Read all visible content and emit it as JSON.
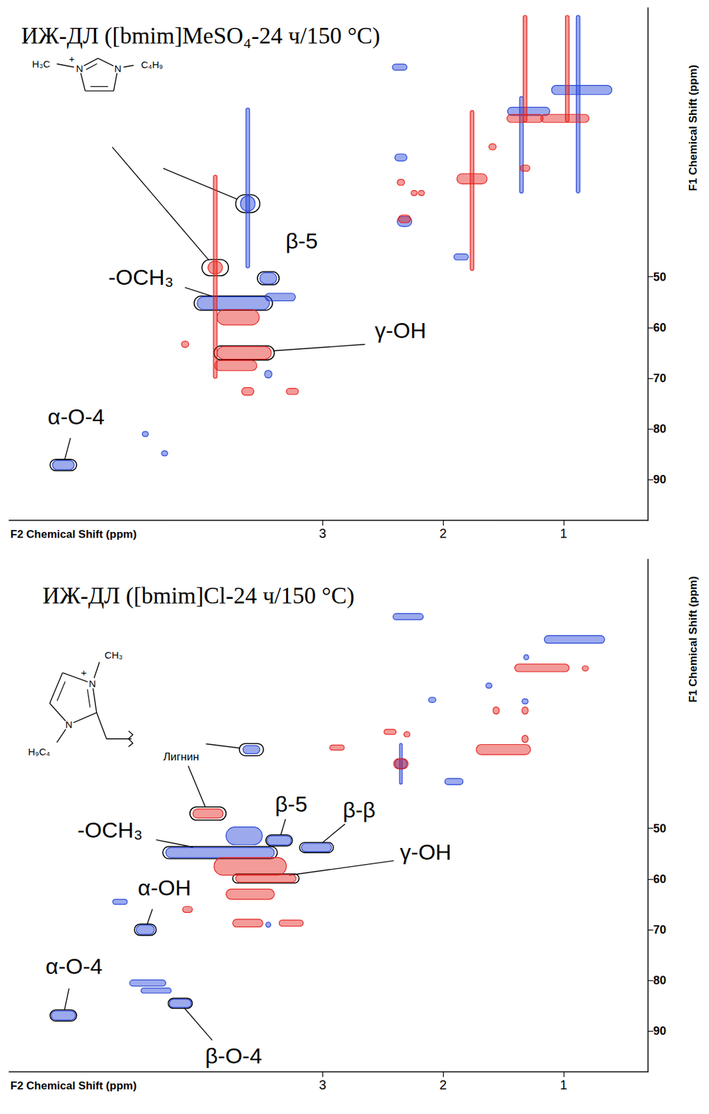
{
  "chart_data": [
    {
      "type": "scatter",
      "title": "ИЖ-ДЛ ([bmim]MeSO₄-24 ч/150 °C)",
      "x_label": "F2 Chemical Shift (ppm)",
      "y_label": "F1 Chemical Shift (ppm)",
      "xlim": [
        5.6,
        0.3
      ],
      "ylim": [
        98,
        -3
      ],
      "xticks": [
        3,
        2,
        1
      ],
      "yticks": [
        50,
        60,
        70,
        80,
        90
      ],
      "grid": false,
      "series": [
        {
          "color": "#2343d6",
          "x": [
            3.62,
            3.62,
            3.45,
            3.74,
            3.35,
            5.15,
            2.36,
            0.85,
            0.88,
            1.29,
            1.35,
            2.35,
            2.32,
            1.85,
            3.45,
            4.47,
            4.31
          ],
          "y": [
            35.6,
            32.5,
            50.3,
            55.2,
            54.0,
            87.1,
            8.7,
            13.2,
            16.0,
            17.4,
            24.0,
            26.5,
            39.1,
            46.1,
            69.2,
            81.0,
            84.8
          ],
          "dx": [
            0.12,
            0.03,
            0.14,
            0.6,
            0.25,
            0.18,
            0.12,
            0.5,
            0.03,
            0.35,
            0.03,
            0.1,
            0.12,
            0.12,
            0.06,
            0.05,
            0.05
          ],
          "dy": [
            3,
            31.5,
            2.2,
            2.5,
            1.5,
            1.8,
            1.2,
            1.8,
            35,
            1.6,
            19,
            1.4,
            2,
            1.2,
            1.5,
            1,
            1
          ]
        },
        {
          "color": "#e5211d",
          "x": [
            3.89,
            3.89,
            3.65,
            3.7,
            3.72,
            3.62,
            3.25,
            4.14,
            1.76,
            1.76,
            0.99,
            0.97,
            1.32,
            1.32,
            1.32,
            1.59,
            2.35,
            2.24,
            2.18,
            2.32
          ],
          "y": [
            48.2,
            50,
            65.0,
            58,
            67.5,
            72.6,
            72.6,
            63.3,
            30.7,
            33,
            18.8,
            9,
            18.8,
            9,
            28.6,
            24.4,
            31.4,
            33.5,
            33.5,
            38.6
          ],
          "dx": [
            0.12,
            0.03,
            0.45,
            0.35,
            0.35,
            0.1,
            0.1,
            0.06,
            0.25,
            0.03,
            0.4,
            0.03,
            0.3,
            0.03,
            0.08,
            0.06,
            0.06,
            0.05,
            0.05,
            0.1
          ],
          "dy": [
            2.5,
            40,
            2.5,
            3,
            2,
            1.5,
            1.2,
            1.2,
            2,
            31.5,
            1.6,
            21,
            1.6,
            21,
            1.2,
            1.2,
            1.2,
            1,
            1,
            1.5
          ]
        }
      ],
      "annotations": [
        {
          "text": "β-5",
          "x": 3.45,
          "y": 50.3,
          "dx": 0.18,
          "dy": 2.6
        },
        {
          "text": "-OCH₃",
          "x": 3.74,
          "y": 55.2,
          "dx": 0.65,
          "dy": 2.8
        },
        {
          "text": "γ-OH",
          "x": 3.65,
          "y": 65.0,
          "dx": 0.5,
          "dy": 2.8
        },
        {
          "text": "α-O-4",
          "x": 5.15,
          "y": 87.1,
          "dx": 0.22,
          "dy": 2.2
        }
      ],
      "structure": {
        "labels": [
          "H₃C",
          "N",
          "+",
          "N",
          "C₄H₉"
        ],
        "targets": [
          {
            "x": 3.89,
            "y": 48.2,
            "dx": 0.22,
            "dy": 3.2
          },
          {
            "x": 3.62,
            "y": 35.6,
            "dx": 0.2,
            "dy": 3.5
          }
        ]
      }
    },
    {
      "type": "scatter",
      "title": "ИЖ-ДЛ ([bmim]Cl-24 ч/150 °C)",
      "x_label": "F2 Chemical Shift (ppm)",
      "y_label": "F1 Chemical Shift (ppm)",
      "xlim": [
        5.6,
        0.3
      ],
      "ylim": [
        98,
        -3
      ],
      "xticks": [
        3,
        2,
        1
      ],
      "yticks": [
        50,
        60,
        70,
        80,
        90
      ],
      "grid": false,
      "series": [
        {
          "color": "#2343d6",
          "x": [
            3.59,
            3.36,
            3.05,
            3.85,
            3.65,
            4.47,
            5.15,
            4.18,
            4.45,
            4.38,
            4.68,
            2.29,
            0.91,
            1.31,
            1.62,
            2.09,
            1.32,
            2.35,
            2.35,
            1.91,
            3.45
          ],
          "y": [
            34.5,
            52.4,
            53.8,
            54.8,
            51.5,
            70.0,
            86.9,
            84.5,
            80.5,
            82.0,
            64.5,
            8.3,
            12.8,
            16.3,
            21.9,
            24.7,
            25.0,
            37.3,
            37.3,
            40.8,
            69.0
          ],
          "dx": [
            0.14,
            0.2,
            0.25,
            0.9,
            0.3,
            0.15,
            0.2,
            0.18,
            0.3,
            0.25,
            0.12,
            0.25,
            0.5,
            0.04,
            0.05,
            0.06,
            0.05,
            0.1,
            0.02,
            0.15,
            0.04
          ],
          "dy": [
            1.6,
            1.8,
            1.6,
            2,
            3.5,
            1.8,
            1.8,
            1.6,
            1.2,
            1,
            1,
            1.2,
            1.5,
            1,
            1,
            1,
            1,
            2,
            8,
            1.2,
            1
          ]
        },
        {
          "color": "#e5211d",
          "x": [
            3.95,
            3.47,
            3.6,
            3.6,
            4.12,
            3.62,
            3.26,
            1.18,
            0.82,
            1.56,
            1.32,
            1.32,
            1.5,
            2.44,
            2.3,
            2.88,
            2.35
          ],
          "y": [
            47.1,
            59.9,
            57.5,
            63,
            66,
            68.7,
            68.7,
            18.4,
            18.5,
            26.8,
            26.8,
            32.4,
            34.5,
            31.0,
            31.5,
            34.1,
            37.3
          ],
          "dx": [
            0.25,
            0.5,
            0.6,
            0.4,
            0.08,
            0.25,
            0.2,
            0.45,
            0.05,
            0.05,
            0.05,
            0.05,
            0.45,
            0.1,
            0.05,
            0.12,
            0.12
          ],
          "dy": [
            1.8,
            1.5,
            3.5,
            2,
            1.2,
            1.5,
            1.2,
            1.5,
            1,
            1.4,
            1.4,
            1.4,
            2,
            1,
            1,
            1,
            2
          ]
        }
      ],
      "annotations": [
        {
          "text": "β-5",
          "x": 3.36,
          "y": 52.4,
          "dx": 0.22,
          "dy": 2.2
        },
        {
          "text": "β-β",
          "x": 3.05,
          "y": 53.8,
          "dx": 0.28,
          "dy": 2
        },
        {
          "text": "-OCH₃",
          "x": 3.85,
          "y": 54.8,
          "dx": 0.95,
          "dy": 2.4
        },
        {
          "text": "γ-OH",
          "x": 3.47,
          "y": 59.9,
          "dx": 0.55,
          "dy": 1.8
        },
        {
          "text": "α-OH",
          "x": 4.47,
          "y": 70.0,
          "dx": 0.18,
          "dy": 2.2
        },
        {
          "text": "α-O-4",
          "x": 5.15,
          "y": 86.9,
          "dx": 0.22,
          "dy": 2.2
        },
        {
          "text": "β-O-4",
          "x": 4.18,
          "y": 84.5,
          "dx": 0.2,
          "dy": 2
        }
      ],
      "structure": {
        "labels": [
          "CH₃",
          "N",
          "+",
          "N",
          "H₉C₄",
          "Лигнин"
        ],
        "targets": [
          {
            "x": 3.59,
            "y": 34.5,
            "dx": 0.2,
            "dy": 2.4
          },
          {
            "x": 3.95,
            "y": 47.1,
            "dx": 0.3,
            "dy": 2.6
          }
        ]
      }
    }
  ]
}
